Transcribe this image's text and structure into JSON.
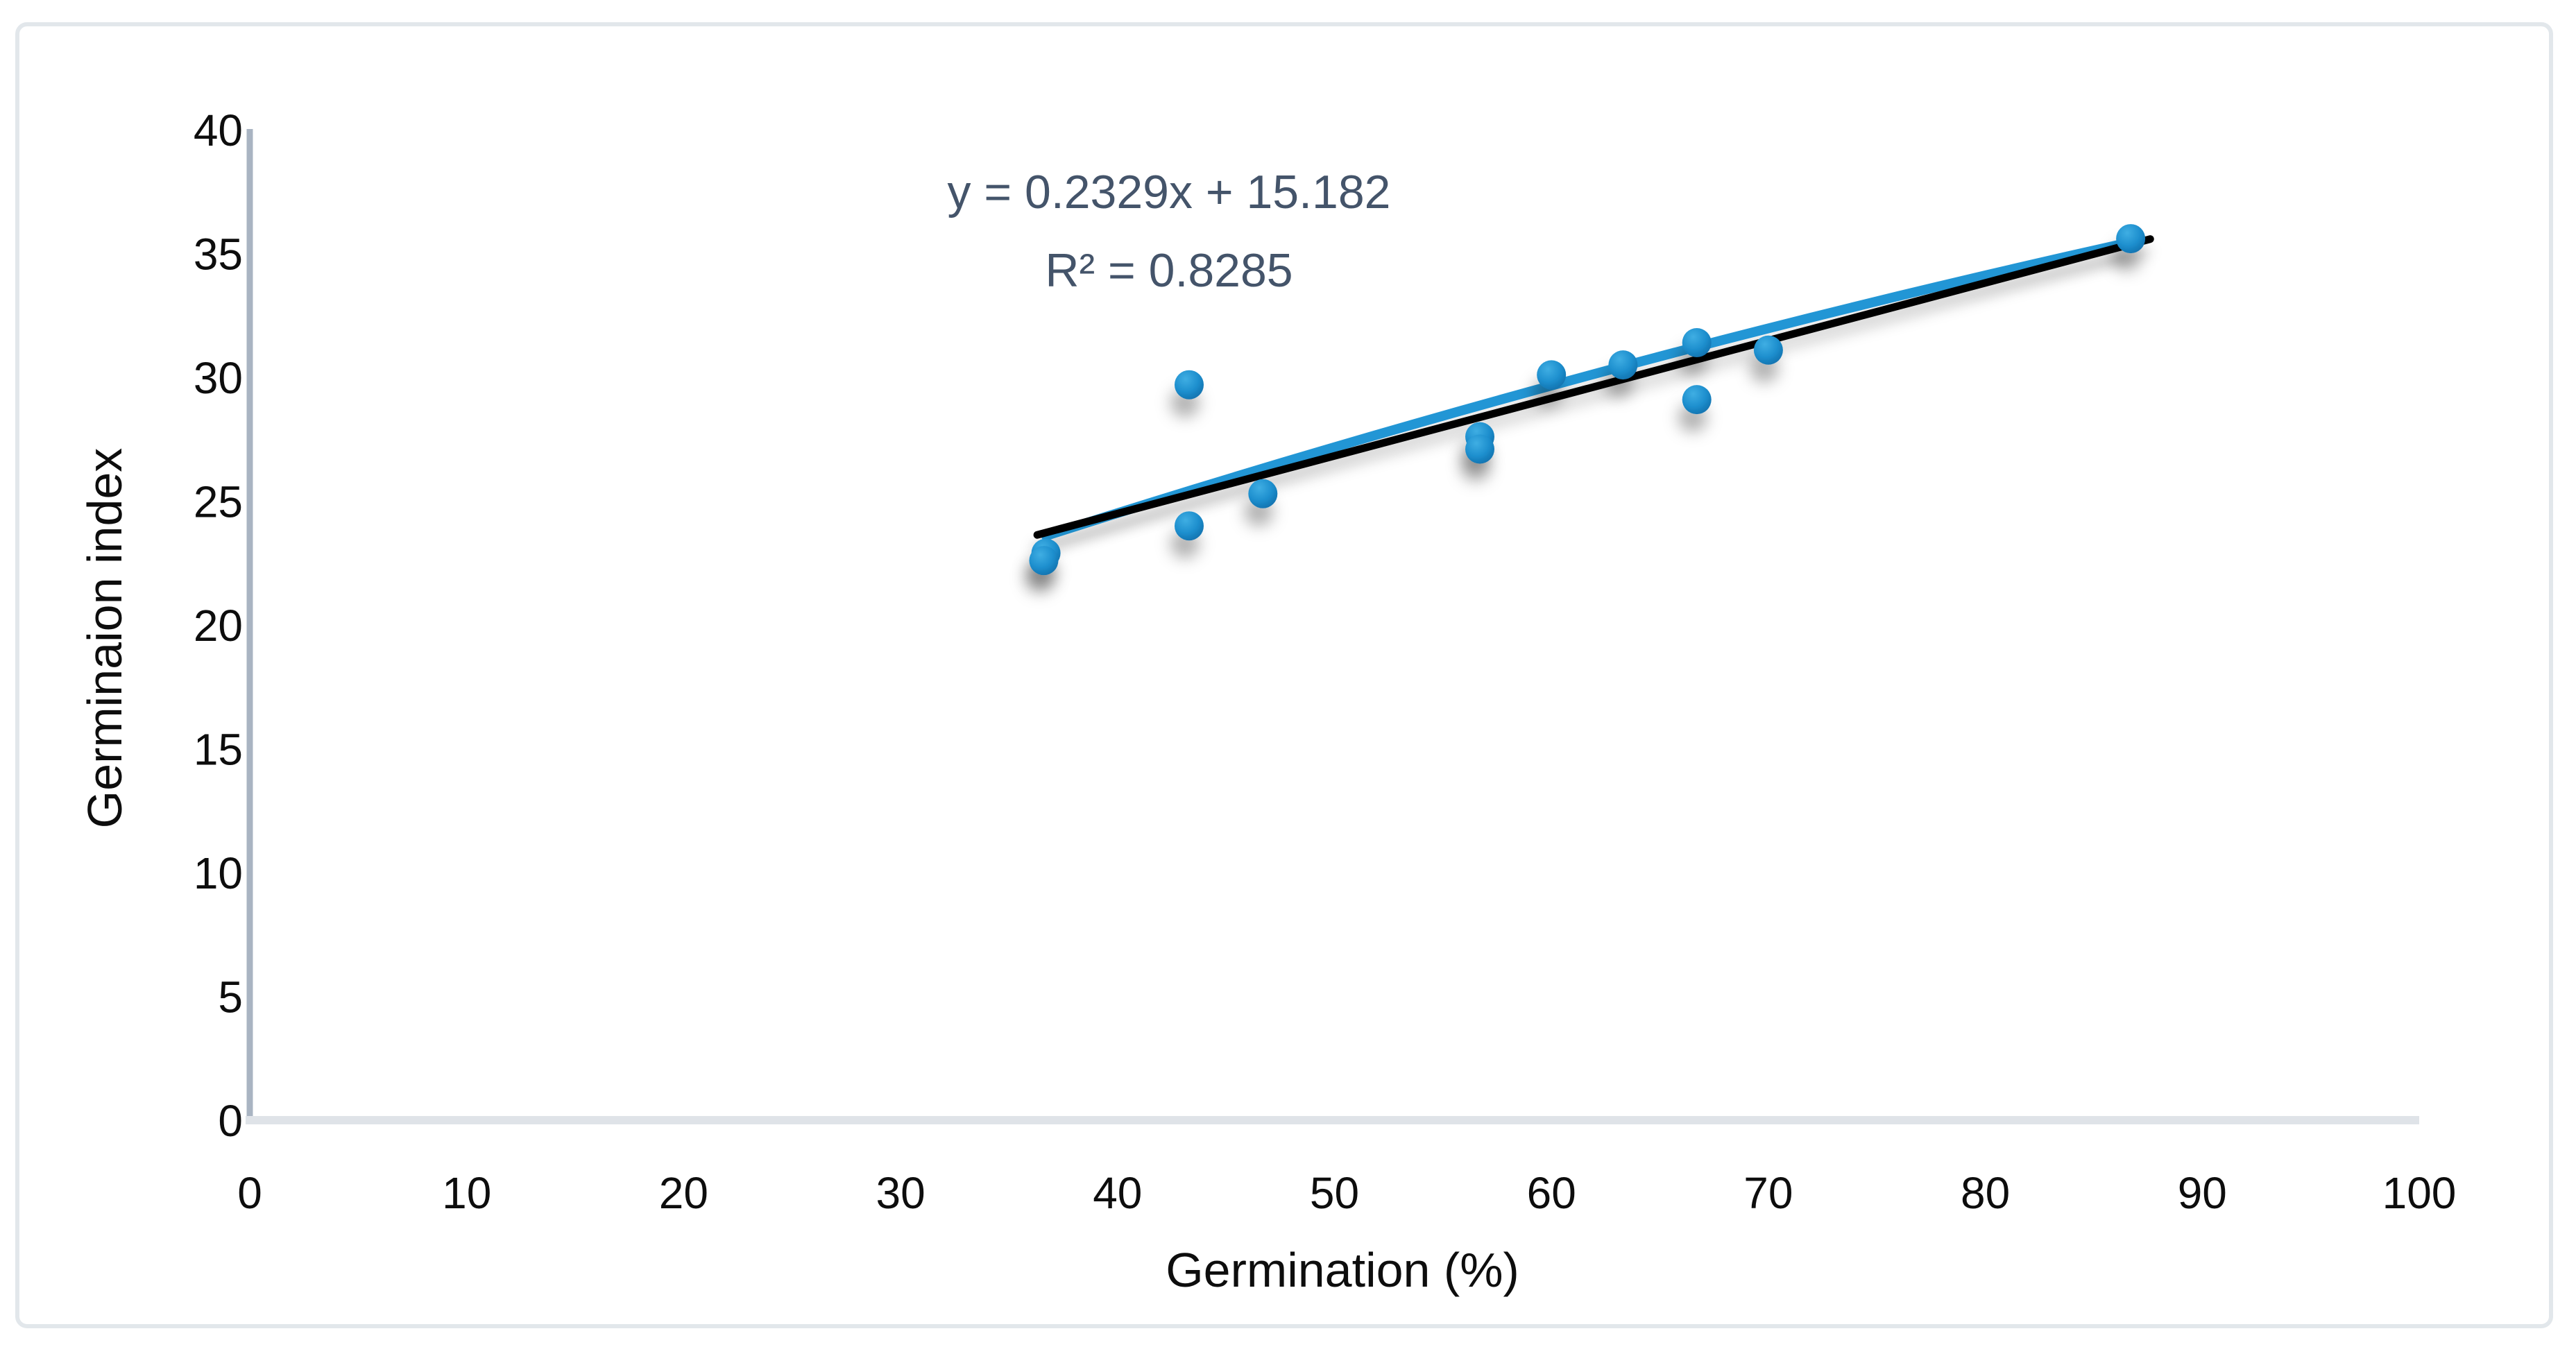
{
  "figure": {
    "background": "#FFFFFF",
    "border_color": "#E2E7EB"
  },
  "chart_data": {
    "type": "scatter",
    "title": "",
    "xlabel": "Germination (%)",
    "ylabel": "Germinaion index",
    "xlim": [
      0,
      100
    ],
    "ylim": [
      0,
      40
    ],
    "x_ticks": [
      0,
      10,
      20,
      30,
      40,
      50,
      60,
      70,
      80,
      90,
      100
    ],
    "y_ticks": [
      0,
      5,
      10,
      15,
      20,
      25,
      30,
      35,
      40
    ],
    "grid": false,
    "legend": "none",
    "points": [
      [
        36.7,
        22.9
      ],
      [
        36.6,
        22.6
      ],
      [
        43.3,
        29.7
      ],
      [
        43.3,
        24.0
      ],
      [
        46.7,
        25.3
      ],
      [
        56.7,
        27.6
      ],
      [
        56.7,
        27.1
      ],
      [
        60.0,
        30.1
      ],
      [
        63.3,
        30.5
      ],
      [
        66.7,
        31.4
      ],
      [
        66.7,
        29.1
      ],
      [
        70.0,
        31.1
      ],
      [
        86.7,
        35.6
      ]
    ],
    "trendline": {
      "slope": 0.2329,
      "intercept": 15.182,
      "equation": "y = 0.2329x + 15.182",
      "r_squared": "R² = 0.8285",
      "x_range": [
        36.3,
        87.6
      ]
    },
    "fit_line": {
      "points": [
        [
          36.7,
          23.6
        ],
        [
          61.4,
          30.0
        ],
        [
          86.4,
          35.4
        ]
      ]
    },
    "colors": {
      "marker": "#1E8FCE",
      "marker_light": "#3FAEE3",
      "marker_dark": "#0E6DA9",
      "trendline": "#000000",
      "fit_line": "#2196D5",
      "equation_text": "#44546A",
      "y_axis": "#A9B4C2",
      "x_axis": "#DFE3E8",
      "tick_text": "#0D0D0D"
    }
  }
}
